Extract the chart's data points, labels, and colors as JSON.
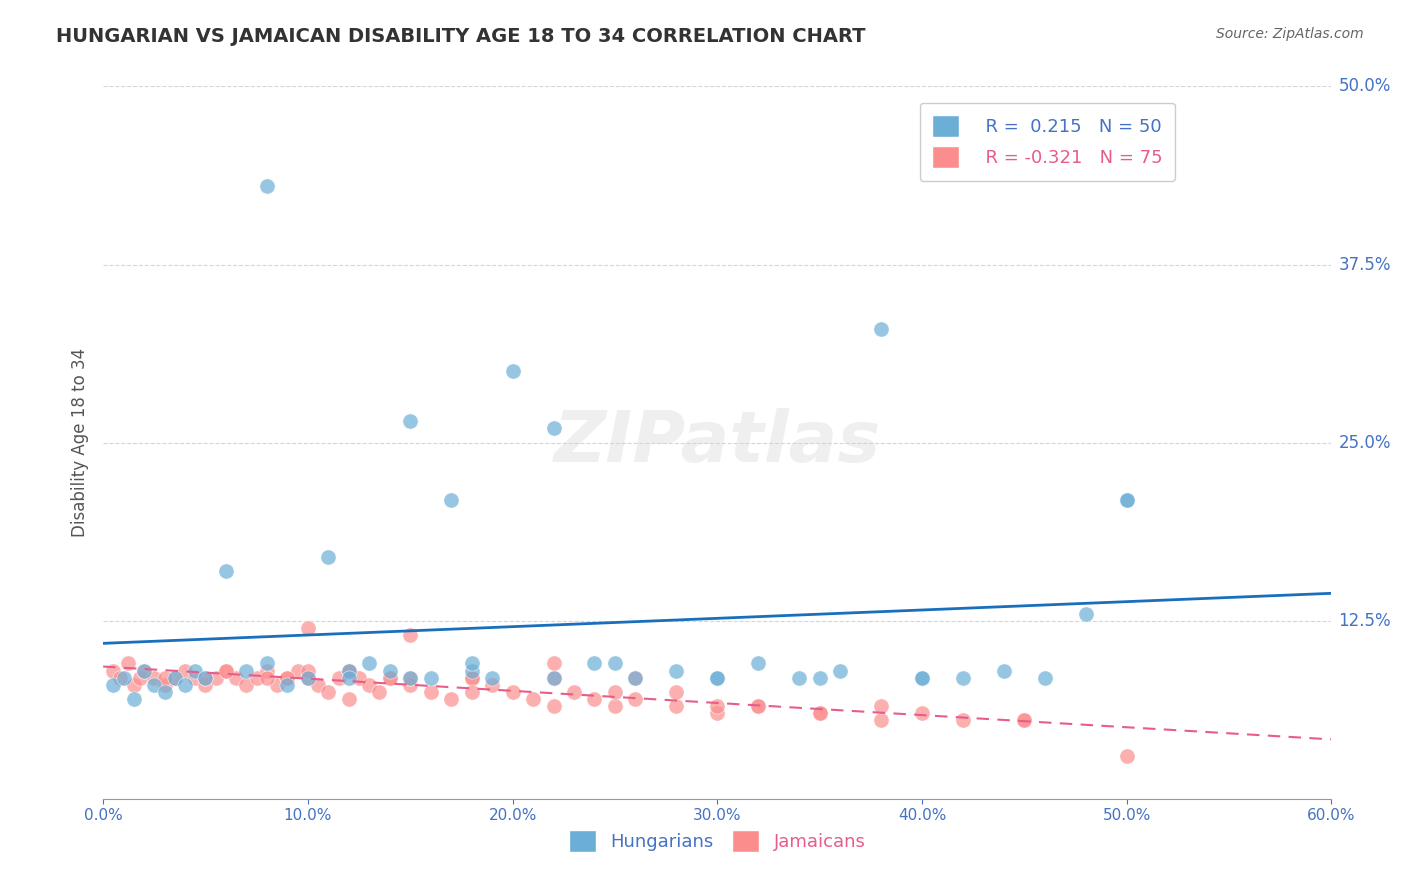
{
  "title": "HUNGARIAN VS JAMAICAN DISABILITY AGE 18 TO 34 CORRELATION CHART",
  "source": "Source: ZipAtlas.com",
  "xlabel": "",
  "ylabel": "Disability Age 18 to 34",
  "xlim": [
    0.0,
    0.6
  ],
  "ylim": [
    0.0,
    0.5
  ],
  "xticks": [
    0.0,
    0.1,
    0.2,
    0.3,
    0.4,
    0.5,
    0.6
  ],
  "yticks": [
    0.0,
    0.125,
    0.25,
    0.375,
    0.5
  ],
  "ytick_labels": [
    "",
    "12.5%",
    "25.0%",
    "37.5%",
    "50.0%"
  ],
  "xtick_labels": [
    "0.0%",
    "10.0%",
    "20.0%",
    "30.0%",
    "40.0%",
    "50.0%",
    "60.0%"
  ],
  "legend_r1": "R =  0.215",
  "legend_n1": "N = 50",
  "legend_r2": "R = -0.321",
  "legend_n2": "N = 75",
  "blue_color": "#6baed6",
  "pink_color": "#fc8d8d",
  "line_blue": "#1a6fbd",
  "line_pink": "#e85c8a",
  "background": "#ffffff",
  "hungarian_x": [
    0.005,
    0.01,
    0.015,
    0.02,
    0.025,
    0.03,
    0.035,
    0.04,
    0.045,
    0.05,
    0.06,
    0.07,
    0.08,
    0.09,
    0.1,
    0.11,
    0.12,
    0.13,
    0.14,
    0.15,
    0.16,
    0.17,
    0.18,
    0.19,
    0.2,
    0.22,
    0.24,
    0.26,
    0.28,
    0.3,
    0.32,
    0.34,
    0.36,
    0.38,
    0.4,
    0.42,
    0.44,
    0.46,
    0.48,
    0.5,
    0.08,
    0.12,
    0.15,
    0.18,
    0.22,
    0.25,
    0.3,
    0.35,
    0.4,
    0.5
  ],
  "hungarian_y": [
    0.08,
    0.085,
    0.07,
    0.09,
    0.08,
    0.075,
    0.085,
    0.08,
    0.09,
    0.085,
    0.16,
    0.09,
    0.095,
    0.08,
    0.085,
    0.17,
    0.09,
    0.095,
    0.09,
    0.265,
    0.085,
    0.21,
    0.09,
    0.085,
    0.3,
    0.26,
    0.095,
    0.085,
    0.09,
    0.085,
    0.095,
    0.085,
    0.09,
    0.33,
    0.085,
    0.085,
    0.09,
    0.085,
    0.13,
    0.21,
    0.43,
    0.085,
    0.085,
    0.095,
    0.085,
    0.095,
    0.085,
    0.085,
    0.085,
    0.21
  ],
  "jamaican_x": [
    0.005,
    0.008,
    0.012,
    0.015,
    0.018,
    0.02,
    0.025,
    0.03,
    0.035,
    0.04,
    0.045,
    0.05,
    0.055,
    0.06,
    0.065,
    0.07,
    0.075,
    0.08,
    0.085,
    0.09,
    0.095,
    0.1,
    0.105,
    0.11,
    0.115,
    0.12,
    0.125,
    0.13,
    0.135,
    0.14,
    0.15,
    0.16,
    0.17,
    0.18,
    0.19,
    0.2,
    0.21,
    0.22,
    0.23,
    0.24,
    0.25,
    0.26,
    0.28,
    0.3,
    0.32,
    0.35,
    0.38,
    0.4,
    0.45,
    0.5,
    0.1,
    0.12,
    0.15,
    0.18,
    0.22,
    0.25,
    0.28,
    0.32,
    0.38,
    0.42,
    0.05,
    0.08,
    0.1,
    0.14,
    0.18,
    0.22,
    0.26,
    0.3,
    0.35,
    0.45,
    0.03,
    0.06,
    0.09,
    0.12,
    0.15
  ],
  "jamaican_y": [
    0.09,
    0.085,
    0.095,
    0.08,
    0.085,
    0.09,
    0.085,
    0.08,
    0.085,
    0.09,
    0.085,
    0.08,
    0.085,
    0.09,
    0.085,
    0.08,
    0.085,
    0.09,
    0.08,
    0.085,
    0.09,
    0.085,
    0.08,
    0.075,
    0.085,
    0.09,
    0.085,
    0.08,
    0.075,
    0.085,
    0.08,
    0.075,
    0.07,
    0.085,
    0.08,
    0.075,
    0.07,
    0.065,
    0.075,
    0.07,
    0.065,
    0.07,
    0.065,
    0.06,
    0.065,
    0.06,
    0.055,
    0.06,
    0.055,
    0.03,
    0.12,
    0.09,
    0.085,
    0.085,
    0.085,
    0.075,
    0.075,
    0.065,
    0.065,
    0.055,
    0.085,
    0.085,
    0.09,
    0.085,
    0.075,
    0.095,
    0.085,
    0.065,
    0.06,
    0.055,
    0.085,
    0.09,
    0.085,
    0.07,
    0.115
  ]
}
